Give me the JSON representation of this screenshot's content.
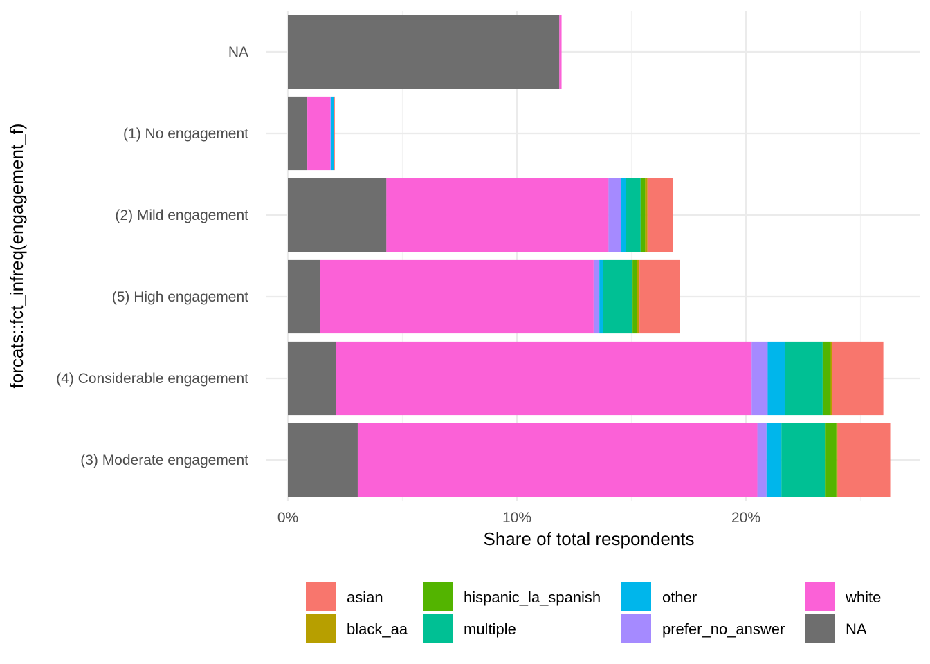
{
  "chart_data": {
    "type": "bar",
    "orientation": "horizontal",
    "stacked": true,
    "xlabel": "Share of total respondents",
    "ylabel": "forcats::fct_infreq(engagement_f)",
    "x_unit": "%",
    "xlim": [
      0,
      26.5
    ],
    "x_ticks": [
      0,
      10,
      20
    ],
    "x_tick_labels": [
      "0%",
      "10%",
      "20%"
    ],
    "x_minor_ticks": [
      5,
      15,
      25
    ],
    "grid": true,
    "legend_position": "bottom",
    "categories": [
      "NA",
      "(1) No engagement",
      "(2) Mild engagement",
      "(5) High engagement",
      "(4) Considerable engagement",
      "(3) Moderate engagement"
    ],
    "stack_order": [
      "NA",
      "white",
      "prefer_no_answer",
      "other",
      "multiple",
      "hispanic_la_spanish",
      "black_aa",
      "asian"
    ],
    "series": [
      {
        "name": "asian",
        "color": "#F8766D",
        "values": [
          0,
          0.05,
          1.1,
          1.75,
          2.25,
          2.3
        ]
      },
      {
        "name": "black_aa",
        "color": "#B79F00",
        "values": [
          0,
          0,
          0.1,
          0.1,
          0.05,
          0.05
        ]
      },
      {
        "name": "hispanic_la_spanish",
        "color": "#53B400",
        "values": [
          0,
          0,
          0.2,
          0.2,
          0.35,
          0.5
        ]
      },
      {
        "name": "multiple",
        "color": "#00C094",
        "values": [
          0,
          0,
          0.65,
          1.3,
          1.65,
          1.9
        ]
      },
      {
        "name": "other",
        "color": "#00B6EB",
        "values": [
          0,
          0.1,
          0.2,
          0.15,
          0.75,
          0.65
        ]
      },
      {
        "name": "prefer_no_answer",
        "color": "#A58AFF",
        "values": [
          0,
          0.05,
          0.55,
          0.25,
          0.7,
          0.4
        ]
      },
      {
        "name": "white",
        "color": "#FB61D7",
        "values": [
          0.1,
          1.0,
          9.7,
          11.95,
          18.15,
          17.45
        ]
      },
      {
        "name": "NA",
        "color": "#6E6E6E",
        "values": [
          11.85,
          0.85,
          4.3,
          1.4,
          2.1,
          3.05
        ]
      }
    ],
    "legend": {
      "columns": [
        [
          "asian",
          "black_aa"
        ],
        [
          "hispanic_la_spanish",
          "multiple"
        ],
        [
          "other",
          "prefer_no_answer"
        ],
        [
          "white",
          "NA"
        ]
      ]
    }
  }
}
